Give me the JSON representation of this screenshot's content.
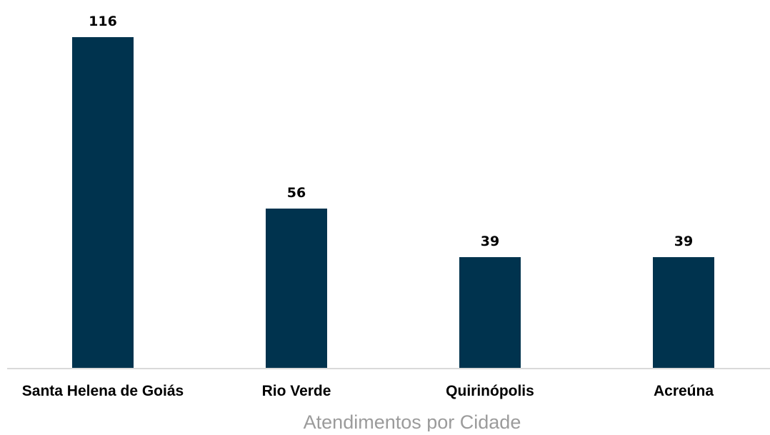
{
  "chart_data": {
    "type": "bar",
    "title": "",
    "xlabel": "Atendimentos por Cidade",
    "ylabel": "",
    "categories": [
      "Santa Helena de Goiás",
      "Rio Verde",
      "Quirinópolis",
      "Acreúna"
    ],
    "values": [
      116,
      56,
      39,
      39
    ],
    "ylim": [
      0,
      116
    ],
    "grid": false,
    "legend": "none",
    "data_labels": true
  },
  "colors": {
    "bar": "#00334e",
    "axis_line": "#d9d9d9",
    "axis_title": "#9b9b9b",
    "text": "#000000"
  }
}
